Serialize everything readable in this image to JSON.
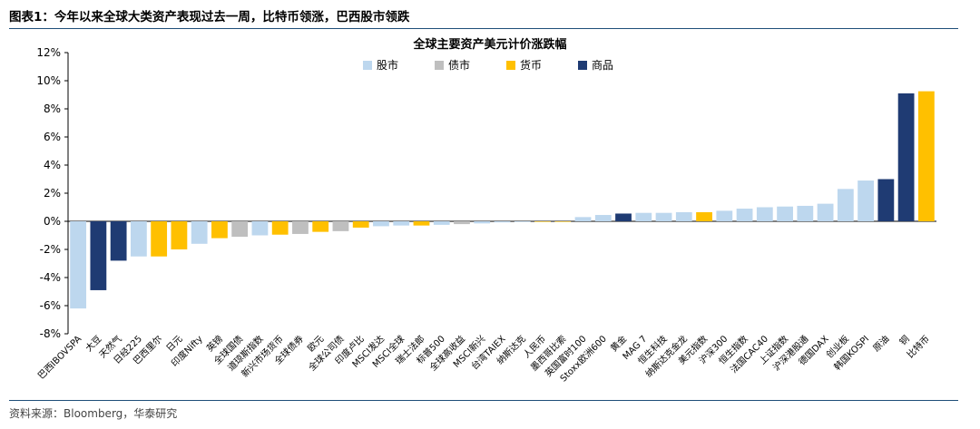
{
  "header": {
    "figure_title": "图表1：今年以来全球大类资产表现过去一周，比特币领涨，巴西股市领跌"
  },
  "footer": {
    "source": "资料来源：Bloomberg，华泰研究"
  },
  "colors": {
    "股市": "#bdd7ee",
    "债市": "#bfbfbf",
    "货币": "#ffc000",
    "商品": "#1f3b73",
    "rule": "#1f4e79"
  },
  "chart_data": {
    "type": "bar",
    "title": "全球主要资产美元计价涨跌幅",
    "legend": [
      "股市",
      "债市",
      "货币",
      "商品"
    ],
    "legend_position": "top-center",
    "ylim": [
      -8,
      12
    ],
    "yticks": [
      "12%",
      "10%",
      "8%",
      "6%",
      "4%",
      "2%",
      "0%",
      "-2%",
      "-4%",
      "-6%",
      "-8%"
    ],
    "grid": false,
    "categories": [
      "巴西IBOVSPA",
      "大豆",
      "天然气",
      "日经225",
      "巴西里尔",
      "日元",
      "印度Nifty",
      "英镑",
      "全球国债",
      "道琼斯指数",
      "新兴市场货币",
      "全球债券",
      "欧元",
      "全球公司债",
      "印度卢比",
      "MSCI发达",
      "MSCI全球",
      "瑞士法郎",
      "标普500",
      "全球高收益",
      "MSCI新兴",
      "台湾TAIEX",
      "纳斯达克",
      "人民币",
      "墨西哥比索",
      "英国富时100",
      "Stoxx欧洲600",
      "黄金",
      "MAG 7",
      "恒生科技",
      "纳斯达克金龙",
      "美元指数",
      "沪深300",
      "恒生指数",
      "法国CAC40",
      "上证指数",
      "沪深港股通",
      "德国DAX",
      "创业板",
      "韩国KOSPI",
      "原油",
      "铜",
      "比特币"
    ],
    "classes": [
      "股市",
      "商品",
      "商品",
      "股市",
      "货币",
      "货币",
      "股市",
      "货币",
      "债市",
      "股市",
      "货币",
      "债市",
      "货币",
      "债市",
      "货币",
      "股市",
      "股市",
      "货币",
      "股市",
      "债市",
      "股市",
      "股市",
      "股市",
      "货币",
      "货币",
      "股市",
      "股市",
      "商品",
      "股市",
      "股市",
      "股市",
      "货币",
      "股市",
      "股市",
      "股市",
      "股市",
      "股市",
      "股市",
      "股市",
      "股市",
      "商品",
      "商品",
      "货币"
    ],
    "values": [
      -6.2,
      -4.9,
      -2.8,
      -2.5,
      -2.5,
      -2.0,
      -1.6,
      -1.2,
      -1.1,
      -1.0,
      -0.95,
      -0.9,
      -0.75,
      -0.7,
      -0.45,
      -0.35,
      -0.3,
      -0.3,
      -0.25,
      -0.2,
      -0.15,
      -0.08,
      -0.05,
      -0.03,
      -0.02,
      0.3,
      0.45,
      0.55,
      0.6,
      0.6,
      0.65,
      0.65,
      0.75,
      0.9,
      1.0,
      1.05,
      1.1,
      1.25,
      2.3,
      2.9,
      3.0,
      9.1,
      9.25
    ]
  }
}
